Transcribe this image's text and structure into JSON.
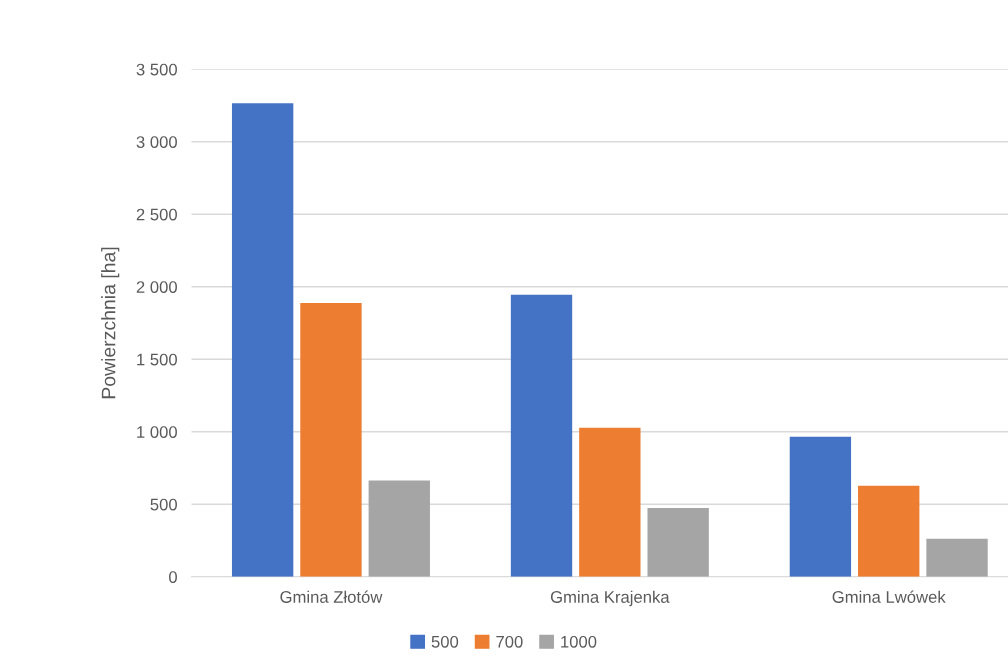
{
  "chart_data": {
    "type": "bar",
    "ylabel": "Powierzchnia [ha]",
    "categories": [
      "Gmina Złotów",
      "Gmina Krajenka",
      "Gmina Lwówek"
    ],
    "series": [
      {
        "name": "500",
        "color": "#4472c4",
        "values": [
          3265,
          1945,
          965
        ]
      },
      {
        "name": "700",
        "color": "#ed7d31",
        "values": [
          1888,
          1027,
          628
        ]
      },
      {
        "name": "1000",
        "color": "#a5a5a5",
        "values": [
          663,
          475,
          262
        ]
      }
    ],
    "ylim": [
      0,
      3500
    ],
    "yticks": [
      0,
      500,
      {
        "value": 1000,
        "label": "1 000"
      },
      {
        "value": 1500,
        "label": "1 500"
      },
      {
        "value": 2000,
        "label": "2 000"
      },
      {
        "value": 2500,
        "label": "2 500"
      },
      {
        "value": 3000,
        "label": "3 000"
      },
      {
        "value": 3500,
        "label": "3 500"
      }
    ],
    "grid": "y",
    "legend": "bottom"
  }
}
